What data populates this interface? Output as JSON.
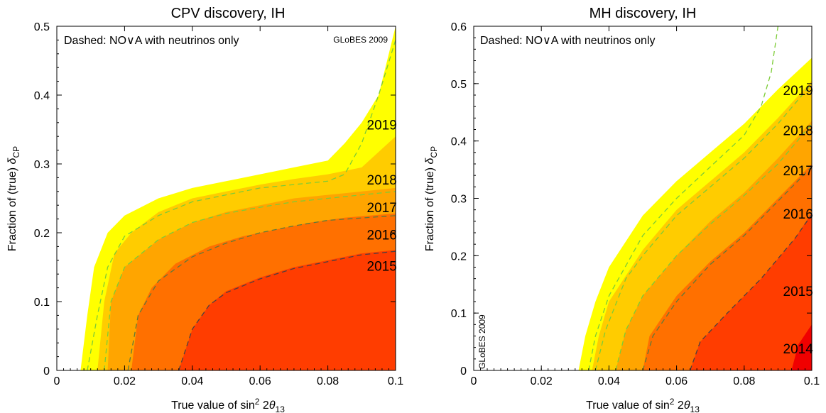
{
  "chart_data": [
    {
      "type": "area",
      "title": "CPV discovery, IH",
      "xlabel": "True value of sin² 2θ₁₃",
      "ylabel": "Fraction of (true) δCP",
      "xlim": [
        0,
        0.1
      ],
      "ylim": [
        0,
        0.5
      ],
      "xticks": [
        0,
        0.02,
        0.04,
        0.06,
        0.08,
        0.1
      ],
      "xtick_labels": [
        "0",
        "0.02",
        "0.04",
        "0.06",
        "0.08",
        "0.1"
      ],
      "yticks": [
        0,
        0.1,
        0.2,
        0.3,
        0.4,
        0.5
      ],
      "ytick_labels": [
        "0",
        "0.1",
        "0.2",
        "0.3",
        "0.4",
        "0.5"
      ],
      "note": "Dashed: NO∨A with neutrinos only",
      "watermark": "GLoBES 2009",
      "series": [
        {
          "name": "2019",
          "color": "#ffff00",
          "points": [
            [
              0,
              0
            ],
            [
              0.007,
              0
            ],
            [
              0.009,
              0.08
            ],
            [
              0.011,
              0.15
            ],
            [
              0.015,
              0.2
            ],
            [
              0.02,
              0.225
            ],
            [
              0.03,
              0.25
            ],
            [
              0.04,
              0.265
            ],
            [
              0.05,
              0.275
            ],
            [
              0.06,
              0.285
            ],
            [
              0.07,
              0.295
            ],
            [
              0.08,
              0.305
            ],
            [
              0.085,
              0.33
            ],
            [
              0.09,
              0.36
            ],
            [
              0.095,
              0.4
            ],
            [
              0.1,
              0.5
            ]
          ]
        },
        {
          "name": "2018",
          "color": "#ffcc00",
          "points": [
            [
              0,
              0
            ],
            [
              0.012,
              0
            ],
            [
              0.014,
              0.1
            ],
            [
              0.017,
              0.17
            ],
            [
              0.022,
              0.2
            ],
            [
              0.03,
              0.23
            ],
            [
              0.04,
              0.25
            ],
            [
              0.05,
              0.26
            ],
            [
              0.06,
              0.27
            ],
            [
              0.07,
              0.278
            ],
            [
              0.08,
              0.285
            ],
            [
              0.09,
              0.295
            ],
            [
              0.1,
              0.34
            ]
          ]
        },
        {
          "name": "2017",
          "color": "#ffa500",
          "points": [
            [
              0,
              0
            ],
            [
              0.015,
              0
            ],
            [
              0.016,
              0.1
            ],
            [
              0.02,
              0.15
            ],
            [
              0.03,
              0.19
            ],
            [
              0.04,
              0.215
            ],
            [
              0.05,
              0.23
            ],
            [
              0.06,
              0.24
            ],
            [
              0.07,
              0.25
            ],
            [
              0.08,
              0.255
            ],
            [
              0.09,
              0.26
            ],
            [
              0.1,
              0.265
            ]
          ]
        },
        {
          "name": "2016",
          "color": "#ff7000",
          "points": [
            [
              0,
              0
            ],
            [
              0.022,
              0
            ],
            [
              0.024,
              0.08
            ],
            [
              0.028,
              0.12
            ],
            [
              0.035,
              0.155
            ],
            [
              0.045,
              0.18
            ],
            [
              0.055,
              0.195
            ],
            [
              0.065,
              0.205
            ],
            [
              0.075,
              0.215
            ],
            [
              0.085,
              0.222
            ],
            [
              0.1,
              0.228
            ]
          ]
        },
        {
          "name": "2015",
          "color": "#ff3d00",
          "points": [
            [
              0,
              0
            ],
            [
              0.036,
              0
            ],
            [
              0.04,
              0.06
            ],
            [
              0.045,
              0.095
            ],
            [
              0.05,
              0.115
            ],
            [
              0.06,
              0.135
            ],
            [
              0.07,
              0.15
            ],
            [
              0.08,
              0.16
            ],
            [
              0.09,
              0.17
            ],
            [
              0.1,
              0.175
            ]
          ]
        }
      ],
      "dashed": [
        {
          "color": "#7ccc36",
          "points": [
            [
              0.009,
              0
            ],
            [
              0.012,
              0.08
            ],
            [
              0.015,
              0.15
            ],
            [
              0.02,
              0.195
            ],
            [
              0.03,
              0.225
            ],
            [
              0.04,
              0.245
            ],
            [
              0.05,
              0.255
            ],
            [
              0.06,
              0.265
            ],
            [
              0.07,
              0.27
            ],
            [
              0.08,
              0.275
            ],
            [
              0.085,
              0.285
            ],
            [
              0.09,
              0.33
            ],
            [
              0.095,
              0.4
            ],
            [
              0.1,
              0.48
            ]
          ]
        },
        {
          "color": "#7ccc36",
          "points": [
            [
              0.014,
              0
            ],
            [
              0.016,
              0.1
            ],
            [
              0.02,
              0.15
            ],
            [
              0.03,
              0.19
            ],
            [
              0.04,
              0.215
            ],
            [
              0.05,
              0.228
            ],
            [
              0.06,
              0.237
            ],
            [
              0.07,
              0.245
            ],
            [
              0.08,
              0.25
            ],
            [
              0.09,
              0.255
            ],
            [
              0.1,
              0.26
            ]
          ]
        },
        {
          "color": "#5e7a3a",
          "points": [
            [
              0.021,
              0
            ],
            [
              0.024,
              0.08
            ],
            [
              0.03,
              0.13
            ],
            [
              0.04,
              0.165
            ],
            [
              0.05,
              0.185
            ],
            [
              0.06,
              0.2
            ],
            [
              0.07,
              0.21
            ],
            [
              0.08,
              0.218
            ],
            [
              0.1,
              0.225
            ]
          ]
        },
        {
          "color": "#4d4040",
          "points": [
            [
              0.036,
              0
            ],
            [
              0.04,
              0.06
            ],
            [
              0.045,
              0.095
            ],
            [
              0.05,
              0.113
            ],
            [
              0.06,
              0.133
            ],
            [
              0.07,
              0.148
            ],
            [
              0.08,
              0.158
            ],
            [
              0.09,
              0.168
            ],
            [
              0.1,
              0.173
            ]
          ]
        }
      ],
      "year_labels": [
        {
          "text": "2019",
          "x": 0.0915,
          "y": 0.35
        },
        {
          "text": "2018",
          "x": 0.0915,
          "y": 0.27
        },
        {
          "text": "2017",
          "x": 0.0915,
          "y": 0.23
        },
        {
          "text": "2016",
          "x": 0.0915,
          "y": 0.19
        },
        {
          "text": "2015",
          "x": 0.0915,
          "y": 0.145
        }
      ]
    },
    {
      "type": "area",
      "title": "MH discovery, IH",
      "xlabel": "True value of sin² 2θ₁₃",
      "ylabel": "Fraction of (true) δCP",
      "xlim": [
        0,
        0.1
      ],
      "ylim": [
        0,
        0.6
      ],
      "xticks": [
        0,
        0.02,
        0.04,
        0.06,
        0.08,
        0.1
      ],
      "xtick_labels": [
        "0",
        "0.02",
        "0.04",
        "0.06",
        "0.08",
        "0.1"
      ],
      "yticks": [
        0,
        0.1,
        0.2,
        0.3,
        0.4,
        0.5,
        0.6
      ],
      "ytick_labels": [
        "0",
        "0.1",
        "0.2",
        "0.3",
        "0.4",
        "0.5",
        "0.6"
      ],
      "note": "Dashed: NO∨A with neutrinos only",
      "watermark": "GLoBES 2009",
      "series": [
        {
          "name": "2019",
          "color": "#ffff00",
          "points": [
            [
              0,
              0
            ],
            [
              0.031,
              0
            ],
            [
              0.033,
              0.06
            ],
            [
              0.036,
              0.12
            ],
            [
              0.04,
              0.18
            ],
            [
              0.05,
              0.27
            ],
            [
              0.06,
              0.33
            ],
            [
              0.07,
              0.38
            ],
            [
              0.08,
              0.43
            ],
            [
              0.09,
              0.49
            ],
            [
              0.1,
              0.545
            ]
          ]
        },
        {
          "name": "2018",
          "color": "#ffcc00",
          "points": [
            [
              0,
              0
            ],
            [
              0.035,
              0
            ],
            [
              0.037,
              0.06
            ],
            [
              0.04,
              0.12
            ],
            [
              0.05,
              0.21
            ],
            [
              0.06,
              0.28
            ],
            [
              0.07,
              0.33
            ],
            [
              0.08,
              0.38
            ],
            [
              0.09,
              0.44
            ],
            [
              0.1,
              0.505
            ]
          ]
        },
        {
          "name": "2017",
          "color": "#ffa500",
          "points": [
            [
              0,
              0
            ],
            [
              0.042,
              0
            ],
            [
              0.045,
              0.07
            ],
            [
              0.05,
              0.13
            ],
            [
              0.06,
              0.2
            ],
            [
              0.07,
              0.26
            ],
            [
              0.08,
              0.31
            ],
            [
              0.09,
              0.37
            ],
            [
              0.1,
              0.435
            ]
          ]
        },
        {
          "name": "2016",
          "color": "#ff7000",
          "points": [
            [
              0,
              0
            ],
            [
              0.05,
              0
            ],
            [
              0.052,
              0.06
            ],
            [
              0.06,
              0.13
            ],
            [
              0.07,
              0.19
            ],
            [
              0.08,
              0.24
            ],
            [
              0.09,
              0.3
            ],
            [
              0.1,
              0.36
            ]
          ]
        },
        {
          "name": "2015",
          "color": "#ff3d00",
          "points": [
            [
              0,
              0
            ],
            [
              0.064,
              0
            ],
            [
              0.067,
              0.05
            ],
            [
              0.075,
              0.1
            ],
            [
              0.085,
              0.16
            ],
            [
              0.095,
              0.23
            ],
            [
              0.1,
              0.275
            ]
          ]
        },
        {
          "name": "2014",
          "color": "#f00000",
          "points": [
            [
              0,
              0
            ],
            [
              0.094,
              0
            ],
            [
              0.096,
              0.045
            ],
            [
              0.1,
              0.08
            ]
          ]
        }
      ],
      "dashed": [
        {
          "color": "#7ccc36",
          "points": [
            [
              0.034,
              0
            ],
            [
              0.036,
              0.06
            ],
            [
              0.04,
              0.13
            ],
            [
              0.05,
              0.235
            ],
            [
              0.06,
              0.3
            ],
            [
              0.07,
              0.355
            ],
            [
              0.08,
              0.41
            ],
            [
              0.085,
              0.46
            ],
            [
              0.088,
              0.52
            ],
            [
              0.09,
              0.6
            ]
          ]
        },
        {
          "color": "#7ccc36",
          "points": [
            [
              0.036,
              0
            ],
            [
              0.039,
              0.07
            ],
            [
              0.045,
              0.16
            ],
            [
              0.05,
              0.2
            ],
            [
              0.06,
              0.27
            ],
            [
              0.07,
              0.32
            ],
            [
              0.08,
              0.37
            ],
            [
              0.09,
              0.43
            ],
            [
              0.1,
              0.5
            ]
          ]
        },
        {
          "color": "#7ccc36",
          "points": [
            [
              0.042,
              0
            ],
            [
              0.045,
              0.07
            ],
            [
              0.05,
              0.13
            ],
            [
              0.06,
              0.2
            ],
            [
              0.07,
              0.255
            ],
            [
              0.08,
              0.305
            ],
            [
              0.09,
              0.36
            ],
            [
              0.1,
              0.43
            ]
          ]
        },
        {
          "color": "#5e7a3a",
          "points": [
            [
              0.05,
              0
            ],
            [
              0.053,
              0.06
            ],
            [
              0.06,
              0.12
            ],
            [
              0.07,
              0.185
            ],
            [
              0.08,
              0.235
            ],
            [
              0.09,
              0.295
            ],
            [
              0.1,
              0.355
            ]
          ]
        },
        {
          "color": "#4d4040",
          "points": [
            [
              0.064,
              0
            ],
            [
              0.067,
              0.05
            ],
            [
              0.075,
              0.1
            ],
            [
              0.085,
              0.16
            ],
            [
              0.095,
              0.23
            ],
            [
              0.1,
              0.272
            ]
          ]
        }
      ],
      "year_labels": [
        {
          "text": "2019",
          "x": 0.0915,
          "y": 0.48
        },
        {
          "text": "2018",
          "x": 0.0915,
          "y": 0.41
        },
        {
          "text": "2017",
          "x": 0.0915,
          "y": 0.34
        },
        {
          "text": "2016",
          "x": 0.0915,
          "y": 0.265
        },
        {
          "text": "2015",
          "x": 0.0915,
          "y": 0.13
        },
        {
          "text": "2014",
          "x": 0.0915,
          "y": 0.03
        }
      ]
    }
  ]
}
